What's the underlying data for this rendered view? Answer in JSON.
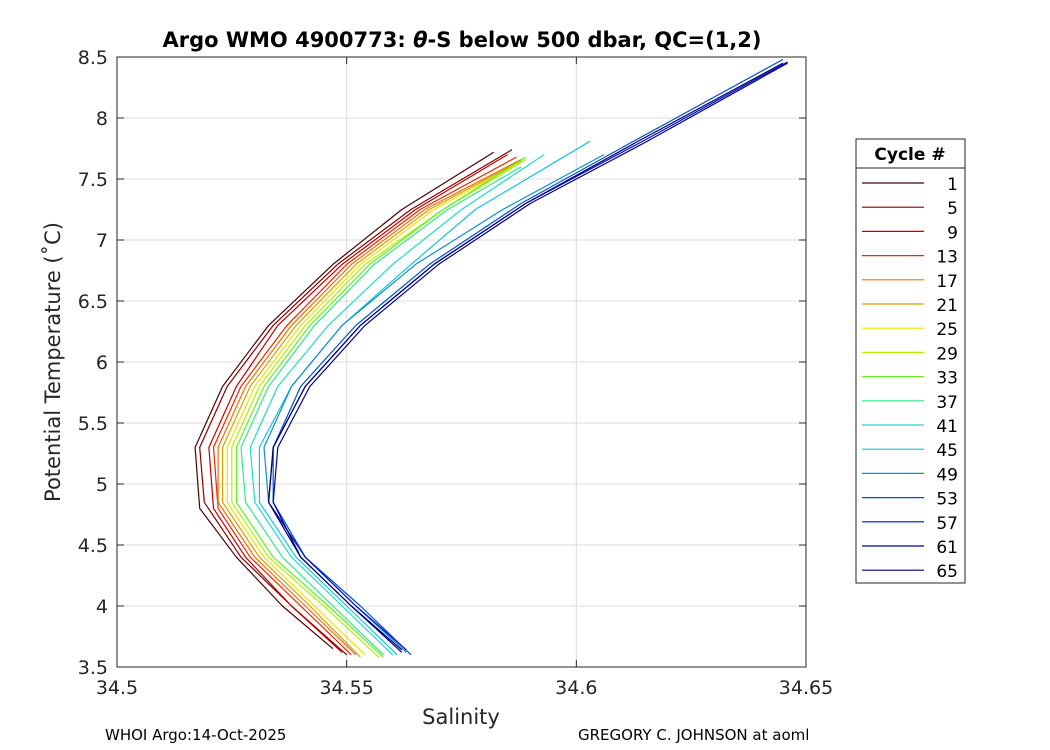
{
  "chart_data": {
    "type": "line",
    "title_prefix": "Argo WMO 4900773: ",
    "title_theta": "θ",
    "title_suffix": "-S below 500 dbar,  QC=(1,2)",
    "xlabel": "Salinity",
    "ylabel": "Potential Temperature (˚C)",
    "xlim": [
      34.5,
      34.65
    ],
    "ylim": [
      3.5,
      8.5
    ],
    "xticks": [
      34.5,
      34.55,
      34.6,
      34.65
    ],
    "xtick_labels": [
      "34.5",
      "34.55",
      "34.6",
      "34.65"
    ],
    "yticks": [
      3.5,
      4,
      4.5,
      5,
      5.5,
      6,
      6.5,
      7,
      7.5,
      8,
      8.5
    ],
    "ytick_labels": [
      "3.5",
      "4",
      "4.5",
      "5",
      "5.5",
      "6",
      "6.5",
      "7",
      "7.5",
      "8",
      "8.5"
    ],
    "grid": true,
    "legend": {
      "title": "Cycle #",
      "placement": "outside-right",
      "entries": [
        {
          "label": "1",
          "color": "#4d0000"
        },
        {
          "label": "5",
          "color": "#880000"
        },
        {
          "label": "9",
          "color": "#c00000"
        },
        {
          "label": "13",
          "color": "#e42a00"
        },
        {
          "label": "17",
          "color": "#f07000"
        },
        {
          "label": "21",
          "color": "#d4a000"
        },
        {
          "label": "25",
          "color": "#f2e000"
        },
        {
          "label": "29",
          "color": "#b4f000"
        },
        {
          "label": "33",
          "color": "#66ee22"
        },
        {
          "label": "37",
          "color": "#33e88a"
        },
        {
          "label": "41",
          "color": "#22dcc8"
        },
        {
          "label": "45",
          "color": "#15c4dd"
        },
        {
          "label": "49",
          "color": "#0e90c8"
        },
        {
          "label": "53",
          "color": "#0050d0"
        },
        {
          "label": "57",
          "color": "#0010c8"
        },
        {
          "label": "61",
          "color": "#000090"
        },
        {
          "label": "65",
          "color": "#000070"
        }
      ]
    },
    "series": [
      {
        "name": "1",
        "color": "#4d0000",
        "points": [
          [
            34.547,
            3.65
          ],
          [
            34.536,
            4.0
          ],
          [
            34.526,
            4.4
          ],
          [
            34.518,
            4.8
          ],
          [
            34.517,
            5.3
          ],
          [
            34.523,
            5.8
          ],
          [
            34.533,
            6.3
          ],
          [
            34.547,
            6.8
          ],
          [
            34.562,
            7.25
          ],
          [
            34.582,
            7.72
          ]
        ]
      },
      {
        "name": "5",
        "color": "#880000",
        "points": [
          [
            34.55,
            3.6
          ],
          [
            34.538,
            4.0
          ],
          [
            34.527,
            4.4
          ],
          [
            34.519,
            4.85
          ],
          [
            34.518,
            5.3
          ],
          [
            34.524,
            5.8
          ],
          [
            34.534,
            6.3
          ],
          [
            34.548,
            6.8
          ],
          [
            34.564,
            7.25
          ],
          [
            34.586,
            7.74
          ]
        ]
      },
      {
        "name": "9",
        "color": "#c00000",
        "points": [
          [
            34.549,
            3.62
          ],
          [
            34.538,
            4.0
          ],
          [
            34.528,
            4.4
          ],
          [
            34.521,
            4.8
          ],
          [
            34.52,
            5.3
          ],
          [
            34.526,
            5.8
          ],
          [
            34.535,
            6.3
          ],
          [
            34.549,
            6.8
          ],
          [
            34.565,
            7.25
          ],
          [
            34.585,
            7.7
          ]
        ]
      },
      {
        "name": "13",
        "color": "#e42a00",
        "points": [
          [
            34.551,
            3.6
          ],
          [
            34.54,
            4.0
          ],
          [
            34.529,
            4.4
          ],
          [
            34.522,
            4.8
          ],
          [
            34.521,
            5.3
          ],
          [
            34.527,
            5.8
          ],
          [
            34.537,
            6.3
          ],
          [
            34.55,
            6.8
          ],
          [
            34.566,
            7.25
          ],
          [
            34.587,
            7.68
          ]
        ]
      },
      {
        "name": "17",
        "color": "#f07000",
        "points": [
          [
            34.552,
            3.6
          ],
          [
            34.541,
            4.0
          ],
          [
            34.53,
            4.4
          ],
          [
            34.522,
            4.85
          ],
          [
            34.522,
            5.3
          ],
          [
            34.528,
            5.8
          ],
          [
            34.538,
            6.3
          ],
          [
            34.551,
            6.8
          ],
          [
            34.567,
            7.25
          ],
          [
            34.588,
            7.66
          ]
        ]
      },
      {
        "name": "21",
        "color": "#d4a000",
        "points": [
          [
            34.553,
            3.58
          ],
          [
            34.542,
            4.0
          ],
          [
            34.531,
            4.4
          ],
          [
            34.523,
            4.85
          ],
          [
            34.523,
            5.3
          ],
          [
            34.529,
            5.8
          ],
          [
            34.539,
            6.3
          ],
          [
            34.552,
            6.8
          ],
          [
            34.568,
            7.25
          ],
          [
            34.588,
            7.65
          ]
        ]
      },
      {
        "name": "25",
        "color": "#f2e000",
        "points": [
          [
            34.554,
            3.6
          ],
          [
            34.543,
            4.0
          ],
          [
            34.532,
            4.4
          ],
          [
            34.524,
            4.85
          ],
          [
            34.524,
            5.3
          ],
          [
            34.53,
            5.8
          ],
          [
            34.54,
            6.3
          ],
          [
            34.553,
            6.8
          ],
          [
            34.569,
            7.25
          ],
          [
            34.588,
            7.64
          ]
        ]
      },
      {
        "name": "29",
        "color": "#b4f000",
        "points": [
          [
            34.557,
            3.58
          ],
          [
            34.545,
            4.0
          ],
          [
            34.533,
            4.4
          ],
          [
            34.525,
            4.85
          ],
          [
            34.525,
            5.3
          ],
          [
            34.531,
            5.8
          ],
          [
            34.541,
            6.3
          ],
          [
            34.554,
            6.8
          ],
          [
            34.571,
            7.25
          ],
          [
            34.589,
            7.66
          ]
        ]
      },
      {
        "name": "33",
        "color": "#66ee22",
        "points": [
          [
            34.558,
            3.58
          ],
          [
            34.546,
            4.0
          ],
          [
            34.534,
            4.4
          ],
          [
            34.526,
            4.85
          ],
          [
            34.526,
            5.3
          ],
          [
            34.532,
            5.8
          ],
          [
            34.542,
            6.3
          ],
          [
            34.555,
            6.8
          ],
          [
            34.571,
            7.25
          ],
          [
            34.589,
            7.68
          ]
        ]
      },
      {
        "name": "37",
        "color": "#33e88a",
        "points": [
          [
            34.558,
            3.6
          ],
          [
            34.547,
            4.0
          ],
          [
            34.536,
            4.4
          ],
          [
            34.528,
            4.85
          ],
          [
            34.527,
            5.3
          ],
          [
            34.533,
            5.8
          ],
          [
            34.543,
            6.3
          ],
          [
            34.556,
            6.8
          ],
          [
            34.572,
            7.25
          ],
          [
            34.588,
            7.6
          ]
        ]
      },
      {
        "name": "41",
        "color": "#22dcc8",
        "points": [
          [
            34.56,
            3.6
          ],
          [
            34.549,
            4.0
          ],
          [
            34.538,
            4.4
          ],
          [
            34.53,
            4.85
          ],
          [
            34.529,
            5.3
          ],
          [
            34.535,
            5.8
          ],
          [
            34.546,
            6.3
          ],
          [
            34.56,
            6.8
          ],
          [
            34.575,
            7.25
          ],
          [
            34.593,
            7.7
          ]
        ]
      },
      {
        "name": "45",
        "color": "#15c4dd",
        "points": [
          [
            34.561,
            3.6
          ],
          [
            34.55,
            4.0
          ],
          [
            34.539,
            4.4
          ],
          [
            34.531,
            4.85
          ],
          [
            34.531,
            5.3
          ],
          [
            34.538,
            5.8
          ],
          [
            34.549,
            6.3
          ],
          [
            34.564,
            6.8
          ],
          [
            34.578,
            7.25
          ],
          [
            34.603,
            7.81
          ]
        ]
      },
      {
        "name": "49",
        "color": "#0e90c8",
        "points": [
          [
            34.563,
            3.62
          ],
          [
            34.552,
            4.0
          ],
          [
            34.541,
            4.4
          ],
          [
            34.533,
            4.85
          ],
          [
            34.532,
            5.3
          ],
          [
            34.538,
            5.8
          ],
          [
            34.549,
            6.3
          ],
          [
            34.565,
            6.8
          ],
          [
            34.584,
            7.25
          ],
          [
            34.606,
            7.7
          ]
        ]
      },
      {
        "name": "53",
        "color": "#0050d0",
        "points": [
          [
            34.564,
            3.6
          ],
          [
            34.553,
            4.0
          ],
          [
            34.541,
            4.4
          ],
          [
            34.534,
            4.85
          ],
          [
            34.534,
            5.3
          ],
          [
            34.54,
            5.8
          ],
          [
            34.552,
            6.3
          ],
          [
            34.568,
            6.8
          ],
          [
            34.588,
            7.3
          ],
          [
            34.612,
            7.8
          ],
          [
            34.645,
            8.48
          ]
        ]
      },
      {
        "name": "57",
        "color": "#0010c8",
        "points": [
          [
            34.563,
            3.64
          ],
          [
            34.552,
            4.0
          ],
          [
            34.541,
            4.4
          ],
          [
            34.533,
            4.85
          ],
          [
            34.534,
            5.3
          ],
          [
            34.541,
            5.8
          ],
          [
            34.553,
            6.3
          ],
          [
            34.569,
            6.8
          ],
          [
            34.589,
            7.3
          ],
          [
            34.614,
            7.8
          ],
          [
            34.646,
            8.46
          ]
        ]
      },
      {
        "name": "61",
        "color": "#000090",
        "points": [
          [
            34.562,
            3.62
          ],
          [
            34.551,
            4.0
          ],
          [
            34.54,
            4.4
          ],
          [
            34.534,
            4.85
          ],
          [
            34.535,
            5.3
          ],
          [
            34.542,
            5.8
          ],
          [
            34.554,
            6.3
          ],
          [
            34.57,
            6.8
          ],
          [
            34.59,
            7.3
          ],
          [
            34.615,
            7.8
          ],
          [
            34.646,
            8.45
          ]
        ]
      },
      {
        "name": "65",
        "color": "#000070",
        "points": [
          [
            34.562,
            3.64
          ],
          [
            34.551,
            4.0
          ],
          [
            34.54,
            4.4
          ],
          [
            34.533,
            4.85
          ],
          [
            34.534,
            5.3
          ],
          [
            34.541,
            5.8
          ],
          [
            34.553,
            6.3
          ],
          [
            34.569,
            6.8
          ],
          [
            34.589,
            7.3
          ],
          [
            34.613,
            7.8
          ],
          [
            34.645,
            8.45
          ]
        ]
      }
    ]
  },
  "footer": {
    "left": "WHOI Argo:14-Oct-2025",
    "right": "GREGORY C. JOHNSON at aoml"
  }
}
